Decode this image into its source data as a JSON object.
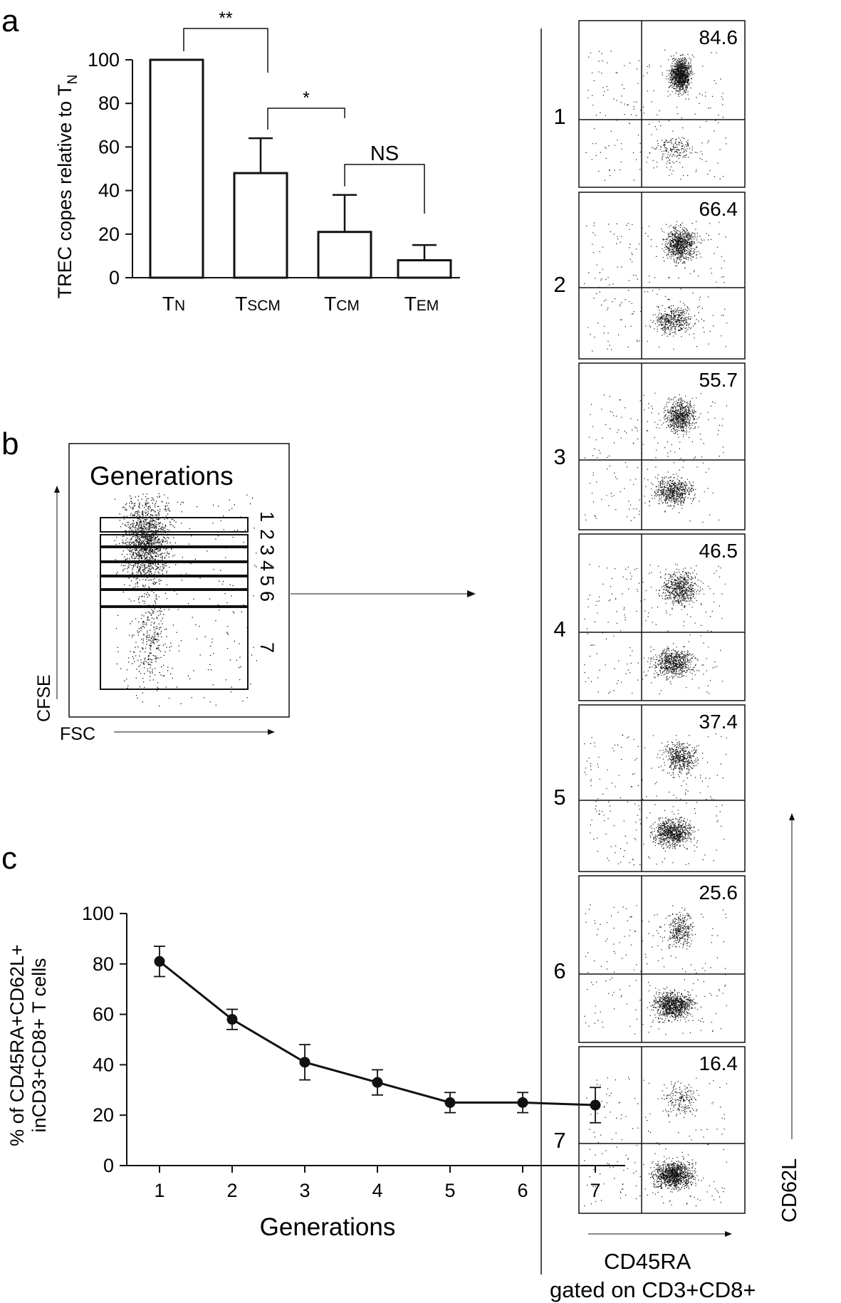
{
  "panels": {
    "a": "a",
    "b": "b",
    "c": "c"
  },
  "colors": {
    "ink": "#111111",
    "bar_fill": "#ffffff",
    "background": "#ffffff"
  },
  "chart_data": [
    {
      "panel": "a",
      "type": "bar",
      "ylabel": "TREC copes relative to T",
      "ylabel_sub": "N",
      "ylim": [
        0,
        100
      ],
      "yticks": [
        "0",
        "20",
        "40",
        "60",
        "80",
        "100"
      ],
      "categories": [
        {
          "main": "T",
          "sub": "N"
        },
        {
          "main": "T",
          "sub": "SCM"
        },
        {
          "main": "T",
          "sub": "CM"
        },
        {
          "main": "T",
          "sub": "EM"
        }
      ],
      "values": [
        100,
        48,
        21,
        8
      ],
      "errors": [
        0,
        16,
        17,
        7
      ],
      "significance": [
        {
          "from": 0,
          "to": 1,
          "label": "**"
        },
        {
          "from": 1,
          "to": 2,
          "label": "*"
        },
        {
          "from": 2,
          "to": 3,
          "label": "NS"
        }
      ],
      "grid": false
    },
    {
      "panel": "b",
      "type": "scatter",
      "title": "Generations",
      "xlabel": "FSC",
      "ylabel": "CFSE",
      "gates": [
        "1",
        "2",
        "3",
        "4",
        "5",
        "6",
        "7"
      ]
    },
    {
      "panel": "b-facs",
      "type": "scatter",
      "xlabel": "CD45RA",
      "xlabel_note": "gated on CD3+CD8+",
      "ylabel": "CD62L",
      "plots": [
        {
          "generation": "1",
          "percent": "84.6"
        },
        {
          "generation": "2",
          "percent": "66.4"
        },
        {
          "generation": "3",
          "percent": "55.7"
        },
        {
          "generation": "4",
          "percent": "46.5"
        },
        {
          "generation": "5",
          "percent": "37.4"
        },
        {
          "generation": "6",
          "percent": "25.6"
        },
        {
          "generation": "7",
          "percent": "16.4"
        }
      ]
    },
    {
      "panel": "c",
      "type": "line",
      "xlabel": "Generations",
      "ylabel": "% of CD45RA+CD62L+",
      "ylabel2": "inCD3+CD8+ T cells",
      "x": [
        1,
        2,
        3,
        4,
        5,
        6,
        7
      ],
      "xticks": [
        "1",
        "2",
        "3",
        "4",
        "5",
        "6",
        "7"
      ],
      "ylim": [
        0,
        100
      ],
      "yticks": [
        "0",
        "20",
        "40",
        "60",
        "80",
        "100"
      ],
      "values": [
        81,
        58,
        41,
        33,
        25,
        25,
        24
      ],
      "errors": [
        6,
        4,
        7,
        5,
        4,
        4,
        7
      ],
      "grid": false
    }
  ]
}
